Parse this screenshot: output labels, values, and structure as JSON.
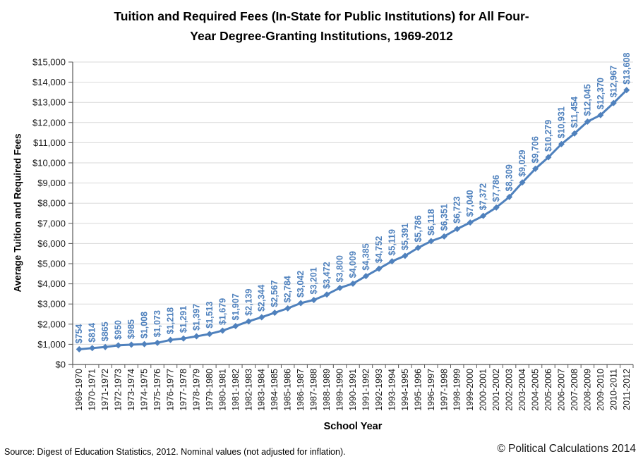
{
  "title": {
    "line1": "Tuition and Required Fees (In-State for Public Institutions) for All Four-",
    "line2": "Year Degree-Granting Institutions, 1969-2012"
  },
  "footer": {
    "source": "Source:  Digest of Education Statistics, 2012.  Nominal values (not adjusted for inflation).",
    "copyright": "© Political Calculations 2014"
  },
  "chart_data": {
    "type": "line",
    "title": "Tuition and Required Fees (In-State for Public Institutions) for All Four-Year Degree-Granting Institutions, 1969-2012",
    "xlabel": "School Year",
    "ylabel": "Average Tuition and Required Fees",
    "categories": [
      "1969-1970",
      "1970-1971",
      "1971-1972",
      "1972-1973",
      "1973-1974",
      "1974-1975",
      "1975-1976",
      "1976-1977",
      "1977-1978",
      "1978-1979",
      "1979-1980",
      "1980-1981",
      "1981-1982",
      "1982-1983",
      "1983-1984",
      "1984-1985",
      "1985-1986",
      "1986-1987",
      "1987-1988",
      "1988-1989",
      "1989-1990",
      "1990-1991",
      "1991-1992",
      "1992-1993",
      "1993-1994",
      "1994-1995",
      "1995-1996",
      "1996-1997",
      "1997-1998",
      "1998-1999",
      "1999-2000",
      "2000-2001",
      "2001-2002",
      "2002-2003",
      "2003-2004",
      "2004-2005",
      "2005-2006",
      "2006-2007",
      "2007-2008",
      "2008-2009",
      "2009-2010",
      "2010-2011",
      "2011-2012"
    ],
    "values": [
      754,
      814,
      865,
      950,
      985,
      1008,
      1073,
      1218,
      1291,
      1397,
      1513,
      1679,
      1907,
      2139,
      2344,
      2567,
      2784,
      3042,
      3201,
      3472,
      3800,
      4009,
      4385,
      4752,
      5119,
      5391,
      5786,
      6118,
      6351,
      6723,
      7040,
      7372,
      7786,
      8309,
      9029,
      9706,
      10279,
      10931,
      11454,
      12045,
      12370,
      12967,
      13608
    ],
    "data_labels": [
      "$754",
      "$814",
      "$865",
      "$950",
      "$985",
      "$1,008",
      "$1,073",
      "$1,218",
      "$1,291",
      "$1,397",
      "$1,513",
      "$1,679",
      "$1,907",
      "$2,139",
      "$2,344",
      "$2,567",
      "$2,784",
      "$3,042",
      "$3,201",
      "$3,472",
      "$3,800",
      "$4,009",
      "$4,385",
      "$4,752",
      "$5,119",
      "$5,391",
      "$5,786",
      "$6,118",
      "$6,351",
      "$6,723",
      "$7,040",
      "$7,372",
      "$7,786",
      "$8,309",
      "$9,029",
      "$9,706",
      "$10,279",
      "$10,931",
      "$11,454",
      "$12,045",
      "$12,370",
      "$12,967",
      "$13,608"
    ],
    "ylim": [
      0,
      15000
    ],
    "ytick_step": 1000,
    "ytick_prefix": "$",
    "grid": true,
    "legend": "none",
    "line_color": "#4F81BD",
    "label_color": "#4F81BD",
    "marker": "diamond"
  }
}
